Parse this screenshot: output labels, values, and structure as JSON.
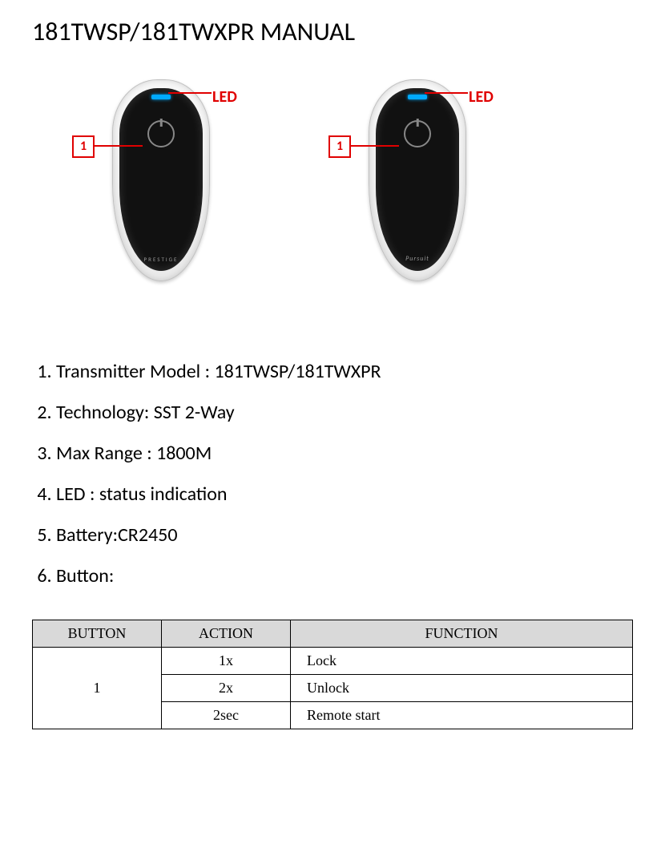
{
  "title": "181TWSP/181TWXPR MANUAL",
  "diagram": {
    "label_led": "LED",
    "label_button": "1",
    "label_led_color": "#e00000",
    "label_button_color": "#e00000",
    "led_color": "#00aaff",
    "remotes": [
      {
        "brand": "PRESTIGE"
      },
      {
        "brand": "Pursuit"
      }
    ]
  },
  "specs": [
    "Transmitter Model : 181TWSP/181TWXPR",
    "Technology: SST 2-Way",
    "Max Range : 1800M",
    "LED : status indication",
    "Battery:CR2450",
    "Button:"
  ],
  "button_table": {
    "headers": [
      "BUTTON",
      "ACTION",
      "FUNCTION"
    ],
    "button_col_value": "1",
    "rows": [
      {
        "action": "1x",
        "function": "Lock"
      },
      {
        "action": "2x",
        "function": "Unlock"
      },
      {
        "action": "2sec",
        "function": "Remote start"
      }
    ],
    "header_bg": "#d9d9d9",
    "border_color": "#000000",
    "font_family": "Times New Roman",
    "font_size_pt": 13
  }
}
